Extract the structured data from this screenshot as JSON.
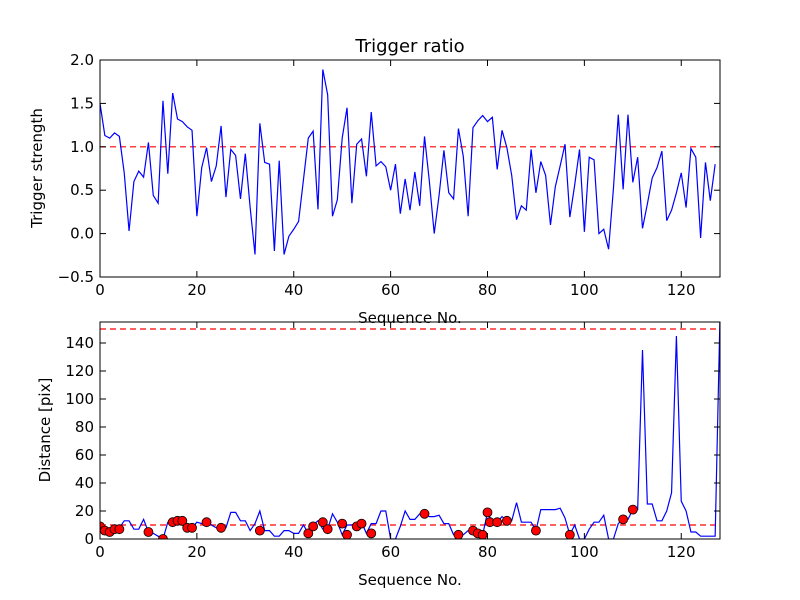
{
  "chart_data": [
    {
      "type": "line",
      "title": "Trigger ratio",
      "xlabel": "Sequence No.",
      "ylabel": "Trigger strength",
      "xlim": [
        0,
        128
      ],
      "ylim": [
        -0.5,
        2.0
      ],
      "xticks": [
        0,
        20,
        40,
        60,
        80,
        100,
        120
      ],
      "xtick_labels": [
        "0",
        "20",
        "40",
        "60",
        "80",
        "100",
        "120"
      ],
      "yticks": [
        -0.5,
        0.0,
        0.5,
        1.0,
        1.5,
        2.0
      ],
      "ytick_labels": [
        "−0.5",
        "0.0",
        "0.5",
        "1.0",
        "1.5",
        "2.0"
      ],
      "reference_lines": [
        1.0
      ],
      "series": [
        {
          "name": "trigger_strength",
          "color": "#0000ff",
          "x_start": 0,
          "x_step": 1,
          "values": [
            1.5,
            1.13,
            1.1,
            1.16,
            1.12,
            0.7,
            0.03,
            0.6,
            0.72,
            0.65,
            1.05,
            0.44,
            0.35,
            1.53,
            0.69,
            1.62,
            1.32,
            1.29,
            1.23,
            1.19,
            0.2,
            0.76,
            0.99,
            0.6,
            0.78,
            1.24,
            0.42,
            0.97,
            0.9,
            0.4,
            0.92,
            0.3,
            -0.24,
            1.27,
            0.82,
            0.8,
            -0.2,
            0.84,
            -0.24,
            -0.03,
            0.05,
            0.14,
            0.62,
            1.1,
            1.18,
            0.28,
            1.89,
            1.6,
            0.2,
            0.39,
            1.1,
            1.45,
            0.35,
            1.03,
            1.09,
            0.66,
            1.4,
            0.78,
            0.83,
            0.77,
            0.5,
            0.8,
            0.23,
            0.63,
            0.27,
            0.71,
            0.32,
            1.12,
            0.6,
            0.0,
            0.44,
            0.96,
            0.47,
            0.4,
            1.21,
            0.89,
            0.2,
            1.22,
            1.3,
            1.36,
            1.29,
            1.34,
            0.74,
            1.19,
            0.99,
            0.67,
            0.16,
            0.32,
            0.27,
            0.97,
            0.47,
            0.83,
            0.67,
            0.1,
            0.54,
            0.78,
            1.03,
            0.19,
            0.56,
            0.97,
            0.02,
            0.88,
            0.85,
            0.0,
            0.05,
            -0.18,
            0.52,
            1.37,
            0.51,
            1.37,
            0.59,
            0.88,
            0.06,
            0.34,
            0.64,
            0.76,
            0.95,
            0.15,
            0.27,
            0.47,
            0.7,
            0.3,
            0.98,
            0.88,
            -0.05,
            0.82,
            0.38,
            0.8
          ]
        }
      ]
    },
    {
      "type": "line",
      "title": "",
      "xlabel": "Sequence No.",
      "ylabel": "Distance [pix]",
      "xlim": [
        0,
        128
      ],
      "ylim": [
        0,
        155
      ],
      "xticks": [
        0,
        20,
        40,
        60,
        80,
        100,
        120
      ],
      "xtick_labels": [
        "0",
        "20",
        "40",
        "60",
        "80",
        "100",
        "120"
      ],
      "yticks": [
        0,
        20,
        40,
        60,
        80,
        100,
        120,
        140
      ],
      "ytick_labels": [
        "0",
        "20",
        "40",
        "60",
        "80",
        "100",
        "120",
        "140"
      ],
      "reference_lines": [
        10,
        150
      ],
      "series": [
        {
          "name": "distance",
          "color": "#0000ff",
          "x_start": 0,
          "x_step": 1,
          "values": [
            10,
            5,
            5,
            8,
            8,
            13,
            13,
            7,
            7,
            14,
            5,
            4,
            2,
            0,
            12,
            13,
            14,
            14,
            8,
            8,
            12,
            11,
            13,
            10,
            8,
            8,
            8,
            19,
            19,
            13,
            13,
            6,
            11,
            20,
            6,
            6,
            2,
            2,
            6,
            6,
            4,
            4,
            10,
            4,
            10,
            13,
            7,
            7,
            18,
            12,
            3,
            10,
            10,
            12,
            12,
            4,
            11,
            11,
            20,
            20,
            0,
            0,
            9,
            20,
            14,
            14,
            18,
            18,
            16,
            16,
            17,
            11,
            11,
            3,
            3,
            3,
            6,
            6,
            3,
            3,
            19,
            12,
            12,
            16,
            13,
            13,
            26,
            12,
            12,
            12,
            6,
            21,
            21,
            21,
            21,
            22,
            15,
            3,
            10,
            0,
            0,
            7,
            12,
            12,
            17,
            0,
            0,
            11,
            14,
            14,
            21,
            21,
            135,
            25,
            25,
            13,
            13,
            20,
            33,
            145,
            27,
            20,
            5,
            5,
            2,
            2,
            2,
            2,
            160
          ]
        },
        {
          "name": "flagged_points",
          "color": "#ff0000",
          "marker": "circle",
          "points": [
            [
              0,
              9
            ],
            [
              1,
              6
            ],
            [
              2,
              5
            ],
            [
              3,
              7
            ],
            [
              4,
              7
            ],
            [
              10,
              5
            ],
            [
              13,
              0
            ],
            [
              15,
              12
            ],
            [
              16,
              13
            ],
            [
              17,
              13
            ],
            [
              18,
              8
            ],
            [
              19,
              8
            ],
            [
              22,
              12
            ],
            [
              25,
              8
            ],
            [
              33,
              6
            ],
            [
              43,
              4
            ],
            [
              44,
              9
            ],
            [
              46,
              12
            ],
            [
              47,
              7
            ],
            [
              50,
              11
            ],
            [
              51,
              3
            ],
            [
              53,
              9
            ],
            [
              54,
              11
            ],
            [
              56,
              4
            ],
            [
              67,
              18
            ],
            [
              74,
              3
            ],
            [
              77,
              6
            ],
            [
              78,
              4
            ],
            [
              79,
              3
            ],
            [
              80,
              19
            ],
            [
              80.5,
              12
            ],
            [
              82,
              12
            ],
            [
              84,
              13
            ],
            [
              90,
              6
            ],
            [
              97,
              3
            ],
            [
              108,
              14
            ],
            [
              110,
              21
            ]
          ]
        }
      ]
    }
  ]
}
